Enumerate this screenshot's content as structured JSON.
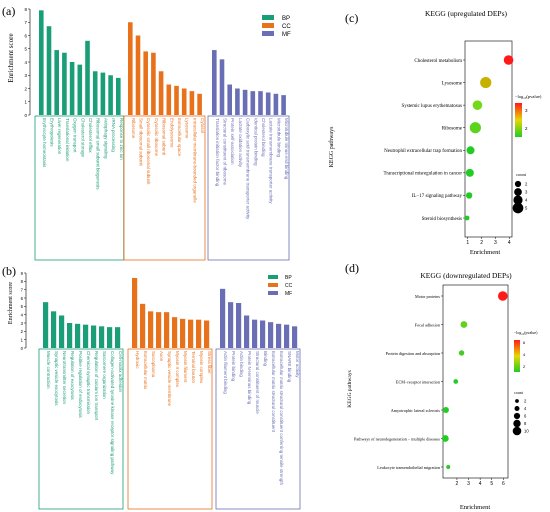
{
  "colors": {
    "BP": "#1a9e77",
    "CC": "#e8711c",
    "MF": "#6a6fb5"
  },
  "go_panels": [
    {
      "panel_label": "(a)",
      "ylabel": "Enrichment score",
      "legend": [
        "BP",
        "CC",
        "MF"
      ],
      "chart_data": {
        "type": "bar",
        "ylim": [
          0,
          8
        ],
        "yticks": [
          0,
          1,
          2,
          3,
          4,
          5,
          6,
          7,
          8
        ],
        "legend_position": "top-right",
        "bars": [
          {
            "label": "Erythrocyte homeostasis",
            "value": 7.9,
            "group": "BP"
          },
          {
            "label": "Erythropoiesis",
            "value": 6.7,
            "group": "BP"
          },
          {
            "label": "Liver regeneration",
            "value": 4.9,
            "group": "BP"
          },
          {
            "label": "Translational initiation",
            "value": 4.7,
            "group": "BP"
          },
          {
            "label": "Oxygen transport",
            "value": 4.0,
            "group": "BP"
          },
          {
            "label": "Cholesterol storage",
            "value": 3.8,
            "group": "BP"
          },
          {
            "label": "Cholesterol efflux",
            "value": 5.6,
            "group": "BP"
          },
          {
            "label": "Ribosomal small subunit biogenesis",
            "value": 3.3,
            "group": "BP"
          },
          {
            "label": "Autophagy signaling",
            "value": 3.2,
            "group": "BP"
          },
          {
            "label": "rRNA processing",
            "value": 3.0,
            "group": "BP"
          },
          {
            "label": "Response to zinc ion",
            "value": 2.8,
            "group": "BP"
          },
          {
            "label": "Ribosome",
            "value": 7.0,
            "group": "CC"
          },
          {
            "label": "Small ribosomal subunit",
            "value": 6.0,
            "group": "CC"
          },
          {
            "label": "Cytosolic small ribosomal subunit",
            "value": 4.8,
            "group": "CC"
          },
          {
            "label": "Cytosolic ribosome",
            "value": 4.7,
            "group": "CC"
          },
          {
            "label": "Ribosomal subunit",
            "value": 3.3,
            "group": "CC"
          },
          {
            "label": "Endolysosome",
            "value": 2.3,
            "group": "CC"
          },
          {
            "label": "Extracellular space",
            "value": 2.2,
            "group": "CC"
          },
          {
            "label": "Lysosome",
            "value": 2.0,
            "group": "CC"
          },
          {
            "label": "Intracellular membrane-bounded organelle",
            "value": 1.8,
            "group": "CC"
          },
          {
            "label": "Cytosol",
            "value": 1.6,
            "group": "CC"
          },
          {
            "label": "Translation initiation factor binding",
            "value": 4.9,
            "group": "MF"
          },
          {
            "label": "Structural constituent of ribosome",
            "value": 4.2,
            "group": "MF"
          },
          {
            "label": "Protein self-association",
            "value": 2.3,
            "group": "MF"
          },
          {
            "label": "Lactate oxidation activity",
            "value": 2.0,
            "group": "MF"
          },
          {
            "label": "Carboxylic acid transmembrane transporter activity",
            "value": 1.9,
            "group": "MF"
          },
          {
            "label": "Identical protein binding",
            "value": 1.8,
            "group": "MF"
          },
          {
            "label": "Cholesterol binding",
            "value": 1.8,
            "group": "MF"
          },
          {
            "label": "Lactate transmembrane transporter activity",
            "value": 1.7,
            "group": "MF"
          },
          {
            "label": "Microtubule binding",
            "value": 1.6,
            "group": "MF"
          },
          {
            "label": "Microtubule minus-end binding",
            "value": 1.5,
            "group": "MF"
          }
        ]
      }
    },
    {
      "panel_label": "(b)",
      "ylabel": "Enrichment score",
      "legend": [
        "BP",
        "CC",
        "MF"
      ],
      "chart_data": {
        "type": "bar",
        "ylim": [
          0,
          9
        ],
        "yticks": [
          0,
          1,
          2,
          3,
          4,
          5,
          6,
          7,
          8,
          9
        ],
        "legend_position": "top-right",
        "bars": [
          {
            "label": "Muscle contraction",
            "value": 5.5,
            "group": "BP"
          },
          {
            "label": "Synaptic vesicle exocytosis",
            "value": 4.4,
            "group": "BP"
          },
          {
            "label": "Neurotransmitter secretion",
            "value": 3.9,
            "group": "BP"
          },
          {
            "label": "Regulation of exocytosis",
            "value": 3.0,
            "group": "BP"
          },
          {
            "label": "Positive regulation of endocytosis",
            "value": 2.9,
            "group": "BP"
          },
          {
            "label": "Chemical synaptic transmission",
            "value": 2.8,
            "group": "BP"
          },
          {
            "label": "Regulation of calcium ion transport",
            "value": 2.7,
            "group": "BP"
          },
          {
            "label": "Sarcomere organization",
            "value": 2.6,
            "group": "BP"
          },
          {
            "label": "Collagen-activated tyrosine kinase receptor signaling pathway",
            "value": 2.5,
            "group": "BP"
          },
          {
            "label": "Cell-matrix adhesion",
            "value": 2.5,
            "group": "BP"
          },
          {
            "label": "Hydroxic",
            "value": 8.4,
            "group": "CC"
          },
          {
            "label": "Extracellular matrix",
            "value": 5.3,
            "group": "CC"
          },
          {
            "label": "Sarcoplasma",
            "value": 4.4,
            "group": "CC"
          },
          {
            "label": "Axon",
            "value": 4.3,
            "group": "CC"
          },
          {
            "label": "Synaptic vesicle membrane",
            "value": 4.3,
            "group": "CC"
          },
          {
            "label": "Myosin II complex",
            "value": 3.7,
            "group": "CC"
          },
          {
            "label": "Myosin filament",
            "value": 3.5,
            "group": "CC"
          },
          {
            "label": "Terminal bouton",
            "value": 3.4,
            "group": "CC"
          },
          {
            "label": "Myosin complex",
            "value": 3.4,
            "group": "CC"
          },
          {
            "label": "Stress fiber",
            "value": 3.3,
            "group": "CC"
          },
          {
            "label": "Actin filament binding",
            "value": 7.1,
            "group": "MF"
          },
          {
            "label": "Protein binding",
            "value": 5.5,
            "group": "MF"
          },
          {
            "label": "Actin binding",
            "value": 5.4,
            "group": "MF"
          },
          {
            "label": "Protein N-terminus binding",
            "value": 3.9,
            "group": "MF"
          },
          {
            "label": "Structural constituent of muscle",
            "value": 3.4,
            "group": "MF"
          },
          {
            "label": "Binding",
            "value": 3.3,
            "group": "MF"
          },
          {
            "label": "Extracellular matrix structural constituent",
            "value": 3.1,
            "group": "MF"
          },
          {
            "label": "Extracellular matrix structural constituent conferring tensile strength",
            "value": 2.9,
            "group": "MF"
          },
          {
            "label": "SNARE binding",
            "value": 2.8,
            "group": "MF"
          },
          {
            "label": "Motor activity",
            "value": 2.6,
            "group": "MF"
          }
        ]
      }
    }
  ],
  "kegg_panels": [
    {
      "panel_label": "(c)",
      "chart_data": {
        "type": "scatter",
        "title": "KEGG (upregulated DEPs)",
        "xlabel": "Enrichment",
        "ylabel": "KEGG pathways",
        "xlim": [
          0.8,
          4.2
        ],
        "xticks": [
          1,
          2,
          3,
          4
        ],
        "color_legend_title": "−log₁₀(pvalue)",
        "color_ticks": [
          "3",
          "2"
        ],
        "size_legend_title": "count",
        "size_legend": [
          "2",
          "3",
          "4",
          "5"
        ],
        "points": [
          {
            "pathway": "Cholesterol metabolism",
            "x": 3.95,
            "count": 4,
            "color": "#ff1a1a"
          },
          {
            "pathway": "Lysosome",
            "x": 2.3,
            "count": 5,
            "color": "#c8b000"
          },
          {
            "pathway": "Systemic lupus erythematosus",
            "x": 1.7,
            "count": 4,
            "color": "#72d818"
          },
          {
            "pathway": "Ribosome",
            "x": 1.55,
            "count": 5,
            "color": "#5cd41e"
          },
          {
            "pathway": "Neutrophil extracellular trap formation",
            "x": 1.2,
            "count": 3,
            "color": "#22cc22"
          },
          {
            "pathway": "Transcriptional misregulation in cancer",
            "x": 1.15,
            "count": 3,
            "color": "#22cc22"
          },
          {
            "pathway": "IL−17 signaling pathway",
            "x": 1.1,
            "count": 2,
            "color": "#22cc22"
          },
          {
            "pathway": "Steroid biosynthesis",
            "x": 0.95,
            "count": 1,
            "color": "#22cc22"
          }
        ]
      }
    },
    {
      "panel_label": "(d)",
      "chart_data": {
        "type": "scatter",
        "title": "KEGG (downregulated DEPs)",
        "xlabel": "Enrichment",
        "ylabel": "KEGG pathways",
        "xlim": [
          0.8,
          6.4
        ],
        "xticks": [
          2,
          3,
          4,
          5,
          6
        ],
        "color_legend_title": "−log₁₀(pvalue)",
        "color_ticks": [
          "6",
          "4",
          "2"
        ],
        "size_legend_title": "count",
        "size_legend": [
          "2",
          "4",
          "6",
          "8",
          "10"
        ],
        "points": [
          {
            "pathway": "Motor proteins",
            "x": 5.95,
            "count": 10,
            "color": "#ff1a1a"
          },
          {
            "pathway": "Focal adhesion",
            "x": 2.6,
            "count": 6,
            "color": "#64d020"
          },
          {
            "pathway": "Protein digestion and absorption",
            "x": 2.4,
            "count": 4,
            "color": "#44cc22"
          },
          {
            "pathway": "ECM−receptor interaction",
            "x": 1.9,
            "count": 3,
            "color": "#22cc22"
          },
          {
            "pathway": "Amyotrophic lateral sclerosis",
            "x": 1.05,
            "count": 5,
            "color": "#22cc22"
          },
          {
            "pathway": "Pathways of neurodegeneration − multiple diseases",
            "x": 1.0,
            "count": 6,
            "color": "#22cc22"
          },
          {
            "pathway": "Leukocyte transendothelial migration",
            "x": 1.25,
            "count": 2,
            "color": "#22cc22"
          }
        ]
      }
    }
  ]
}
